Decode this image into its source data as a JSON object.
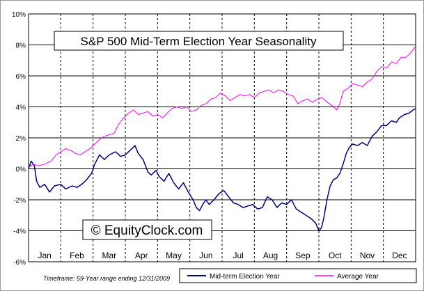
{
  "chart_data": {
    "type": "line",
    "title": "S&P 500 Mid-Term Election Year Seasonality",
    "watermark": "© EquityClock.com",
    "footnote": "Timeframe: 59-Year range ending 12/31/2009",
    "categories": [
      "Jan",
      "Feb",
      "Mar",
      "Apr",
      "May",
      "Jun",
      "Jul",
      "Aug",
      "Sep",
      "Oct",
      "Nov",
      "Dec"
    ],
    "y_ticks": [
      "10%",
      "8%",
      "6%",
      "4%",
      "2%",
      "0%",
      "-2%",
      "-4%",
      "-6%"
    ],
    "ylim": [
      -6,
      10
    ],
    "xlim": [
      0,
      12
    ],
    "grid": true,
    "legend_position": "bottom-right",
    "x_unit": "month index (0 = start of Jan, 12 = end of Dec)",
    "series": [
      {
        "name": "Mid-term Election Year",
        "color": "#000080",
        "points": [
          [
            0.0,
            0.0
          ],
          [
            0.08,
            0.5
          ],
          [
            0.18,
            0.2
          ],
          [
            0.25,
            -0.8
          ],
          [
            0.35,
            -1.2
          ],
          [
            0.5,
            -1.0
          ],
          [
            0.65,
            -1.5
          ],
          [
            0.8,
            -1.1
          ],
          [
            1.0,
            -1.0
          ],
          [
            1.15,
            -1.3
          ],
          [
            1.35,
            -1.1
          ],
          [
            1.5,
            -1.2
          ],
          [
            1.65,
            -1.0
          ],
          [
            1.8,
            -0.7
          ],
          [
            1.95,
            -0.3
          ],
          [
            2.05,
            0.3
          ],
          [
            2.2,
            0.9
          ],
          [
            2.35,
            0.6
          ],
          [
            2.5,
            0.9
          ],
          [
            2.7,
            1.1
          ],
          [
            2.85,
            0.8
          ],
          [
            3.0,
            0.9
          ],
          [
            3.15,
            1.2
          ],
          [
            3.3,
            1.5
          ],
          [
            3.4,
            1.0
          ],
          [
            3.55,
            0.6
          ],
          [
            3.7,
            -0.2
          ],
          [
            3.8,
            -0.4
          ],
          [
            3.95,
            -0.1
          ],
          [
            4.05,
            -0.5
          ],
          [
            4.2,
            -0.8
          ],
          [
            4.35,
            -0.3
          ],
          [
            4.5,
            -0.9
          ],
          [
            4.65,
            -1.3
          ],
          [
            4.8,
            -0.9
          ],
          [
            4.95,
            -1.5
          ],
          [
            5.1,
            -2.0
          ],
          [
            5.2,
            -2.5
          ],
          [
            5.3,
            -2.7
          ],
          [
            5.4,
            -2.3
          ],
          [
            5.5,
            -2.0
          ],
          [
            5.6,
            -2.3
          ],
          [
            5.75,
            -2.0
          ],
          [
            5.9,
            -1.6
          ],
          [
            6.05,
            -1.4
          ],
          [
            6.2,
            -1.8
          ],
          [
            6.35,
            -2.2
          ],
          [
            6.5,
            -2.3
          ],
          [
            6.65,
            -2.5
          ],
          [
            6.8,
            -2.4
          ],
          [
            6.95,
            -2.3
          ],
          [
            7.1,
            -2.6
          ],
          [
            7.25,
            -2.5
          ],
          [
            7.4,
            -1.8
          ],
          [
            7.55,
            -2.0
          ],
          [
            7.7,
            -2.5
          ],
          [
            7.85,
            -2.2
          ],
          [
            8.0,
            -2.3
          ],
          [
            8.15,
            -2.0
          ],
          [
            8.3,
            -2.6
          ],
          [
            8.45,
            -2.8
          ],
          [
            8.6,
            -3.0
          ],
          [
            8.75,
            -3.2
          ],
          [
            8.9,
            -3.5
          ],
          [
            9.0,
            -4.0
          ],
          [
            9.08,
            -3.8
          ],
          [
            9.15,
            -3.2
          ],
          [
            9.25,
            -2.0
          ],
          [
            9.35,
            -1.1
          ],
          [
            9.45,
            -0.7
          ],
          [
            9.55,
            -0.6
          ],
          [
            9.65,
            -0.3
          ],
          [
            9.75,
            0.3
          ],
          [
            9.85,
            1.0
          ],
          [
            9.95,
            1.4
          ],
          [
            10.05,
            1.6
          ],
          [
            10.2,
            1.5
          ],
          [
            10.35,
            1.7
          ],
          [
            10.5,
            1.5
          ],
          [
            10.65,
            2.1
          ],
          [
            10.8,
            2.4
          ],
          [
            10.95,
            2.8
          ],
          [
            11.1,
            2.8
          ],
          [
            11.25,
            3.1
          ],
          [
            11.4,
            3.0
          ],
          [
            11.5,
            3.3
          ],
          [
            11.65,
            3.5
          ],
          [
            11.8,
            3.6
          ],
          [
            11.92,
            3.8
          ],
          [
            12.0,
            3.9
          ]
        ]
      },
      {
        "name": "Average Year",
        "color": "#ff00ff",
        "points": [
          [
            0.0,
            0.1
          ],
          [
            0.15,
            0.3
          ],
          [
            0.3,
            0.2
          ],
          [
            0.5,
            0.3
          ],
          [
            0.7,
            0.5
          ],
          [
            0.85,
            0.9
          ],
          [
            1.0,
            1.1
          ],
          [
            1.15,
            1.3
          ],
          [
            1.3,
            1.2
          ],
          [
            1.45,
            1.0
          ],
          [
            1.6,
            0.9
          ],
          [
            1.75,
            1.1
          ],
          [
            1.9,
            1.3
          ],
          [
            2.05,
            1.6
          ],
          [
            2.2,
            1.9
          ],
          [
            2.35,
            2.1
          ],
          [
            2.5,
            2.2
          ],
          [
            2.65,
            2.3
          ],
          [
            2.8,
            2.9
          ],
          [
            2.95,
            3.3
          ],
          [
            3.1,
            3.6
          ],
          [
            3.25,
            3.8
          ],
          [
            3.4,
            3.5
          ],
          [
            3.55,
            3.6
          ],
          [
            3.7,
            3.7
          ],
          [
            3.85,
            3.4
          ],
          [
            4.0,
            3.5
          ],
          [
            4.15,
            3.3
          ],
          [
            4.3,
            3.6
          ],
          [
            4.45,
            3.9
          ],
          [
            4.6,
            4.0
          ],
          [
            4.75,
            3.9
          ],
          [
            4.9,
            4.0
          ],
          [
            5.05,
            3.7
          ],
          [
            5.2,
            3.8
          ],
          [
            5.35,
            4.1
          ],
          [
            5.5,
            4.2
          ],
          [
            5.65,
            4.5
          ],
          [
            5.8,
            4.6
          ],
          [
            5.95,
            4.9
          ],
          [
            6.1,
            4.7
          ],
          [
            6.25,
            4.4
          ],
          [
            6.4,
            4.6
          ],
          [
            6.55,
            4.8
          ],
          [
            6.7,
            4.7
          ],
          [
            6.85,
            4.8
          ],
          [
            7.0,
            4.6
          ],
          [
            7.15,
            4.9
          ],
          [
            7.3,
            5.0
          ],
          [
            7.45,
            5.1
          ],
          [
            7.6,
            4.9
          ],
          [
            7.75,
            5.1
          ],
          [
            7.9,
            5.0
          ],
          [
            8.05,
            4.8
          ],
          [
            8.2,
            4.7
          ],
          [
            8.35,
            4.2
          ],
          [
            8.5,
            4.4
          ],
          [
            8.65,
            4.5
          ],
          [
            8.8,
            4.3
          ],
          [
            8.95,
            4.5
          ],
          [
            9.1,
            4.6
          ],
          [
            9.25,
            4.3
          ],
          [
            9.4,
            4.1
          ],
          [
            9.55,
            3.8
          ],
          [
            9.65,
            4.2
          ],
          [
            9.75,
            5.0
          ],
          [
            9.9,
            5.2
          ],
          [
            10.05,
            5.5
          ],
          [
            10.2,
            5.4
          ],
          [
            10.35,
            5.3
          ],
          [
            10.5,
            5.6
          ],
          [
            10.65,
            5.8
          ],
          [
            10.8,
            6.3
          ],
          [
            10.95,
            6.6
          ],
          [
            11.1,
            6.5
          ],
          [
            11.25,
            6.9
          ],
          [
            11.4,
            6.8
          ],
          [
            11.55,
            7.2
          ],
          [
            11.7,
            7.2
          ],
          [
            11.85,
            7.5
          ],
          [
            12.0,
            7.9
          ]
        ]
      }
    ]
  }
}
